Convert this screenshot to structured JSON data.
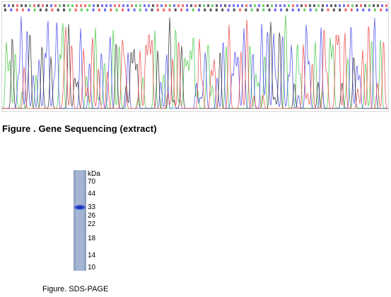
{
  "sequencing": {
    "caption": "Figure . Gene Sequencing (extract)",
    "trace_colors": {
      "A": "#3cc43c",
      "C": "#4040ee",
      "G": "#222222",
      "T": "#ee3c3c"
    }
  },
  "gel": {
    "unit_label": "kDa",
    "markers": [
      "70",
      "44",
      "33",
      "26",
      "22",
      "18",
      "14",
      "10"
    ],
    "band_color": "#1a33c0",
    "lane_color": "#a3b3d3",
    "caption": "Figure. SDS-PAGE"
  }
}
